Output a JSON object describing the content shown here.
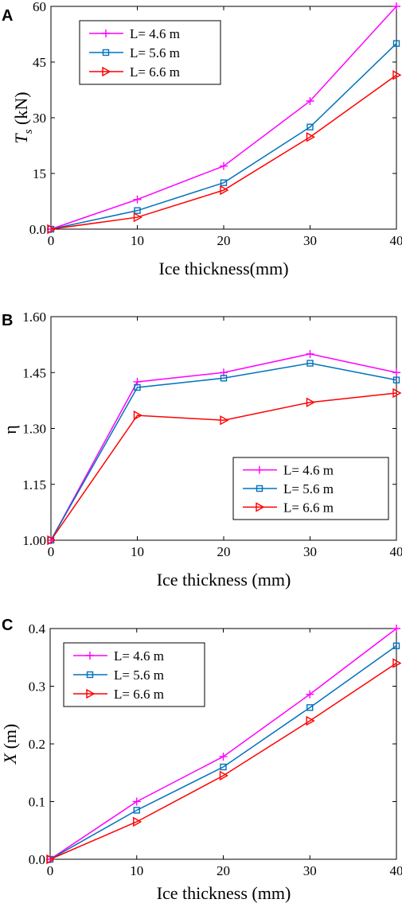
{
  "chart_data": [
    {
      "panel": "A",
      "type": "line",
      "title": "",
      "xlabel": "Ice thickness(mm)",
      "ylabel_main": "T",
      "ylabel_sub": "s",
      "ylabel_unit": " (kN)",
      "xlim": [
        0,
        40
      ],
      "ylim": [
        0,
        60
      ],
      "xticks": [
        "0",
        "10",
        "20",
        "30",
        "40"
      ],
      "yticks": [
        "0.0",
        "15",
        "30",
        "45",
        "60"
      ],
      "x": [
        0,
        10,
        20,
        30,
        40
      ],
      "legend_position": "top-left",
      "series": [
        {
          "name": "L= 4.6 m",
          "color": "#ff00ff",
          "marker": "plus",
          "values": [
            0,
            8,
            17,
            34.5,
            60
          ]
        },
        {
          "name": "L= 5.6 m",
          "color": "#0072bd",
          "marker": "square",
          "values": [
            0,
            5,
            12.5,
            27.5,
            50
          ]
        },
        {
          "name": "L= 6.6 m",
          "color": "#ff0000",
          "marker": "triangle-right",
          "values": [
            0,
            3.2,
            10.5,
            24.8,
            41.5
          ]
        }
      ]
    },
    {
      "panel": "B",
      "type": "line",
      "title": "",
      "xlabel": "Ice thickness (mm)",
      "ylabel_main": "η",
      "ylabel_sub": "",
      "ylabel_unit": "",
      "xlim": [
        0,
        40
      ],
      "ylim": [
        1.0,
        1.6
      ],
      "xticks": [
        "0",
        "10",
        "20",
        "30",
        "40"
      ],
      "yticks": [
        "1.00",
        "1.15",
        "1.30",
        "1.45",
        "1.60"
      ],
      "x": [
        0,
        10,
        20,
        30,
        40
      ],
      "legend_position": "bottom-right",
      "series": [
        {
          "name": "L= 4.6 m",
          "color": "#ff00ff",
          "marker": "plus",
          "values": [
            1.0,
            1.425,
            1.45,
            1.5,
            1.45
          ]
        },
        {
          "name": "L= 5.6 m",
          "color": "#0072bd",
          "marker": "square",
          "values": [
            1.0,
            1.41,
            1.435,
            1.475,
            1.43
          ]
        },
        {
          "name": "L= 6.6 m",
          "color": "#ff0000",
          "marker": "triangle-right",
          "values": [
            1.0,
            1.335,
            1.322,
            1.37,
            1.395
          ]
        }
      ]
    },
    {
      "panel": "C",
      "type": "line",
      "title": "",
      "xlabel": "Ice thickness (mm)",
      "ylabel_main": "X",
      "ylabel_sub": "",
      "ylabel_unit": " (m)",
      "xlim": [
        0,
        40
      ],
      "ylim": [
        0,
        0.4
      ],
      "xticks": [
        "0",
        "10",
        "20",
        "30",
        "40"
      ],
      "yticks": [
        "0.0",
        "0.1",
        "0.2",
        "0.3",
        "0.4"
      ],
      "x": [
        0,
        10,
        20,
        30,
        40
      ],
      "legend_position": "top-left",
      "series": [
        {
          "name": "L= 4.6 m",
          "color": "#ff00ff",
          "marker": "plus",
          "values": [
            0,
            0.1,
            0.178,
            0.286,
            0.4
          ]
        },
        {
          "name": "L= 5.6 m",
          "color": "#0072bd",
          "marker": "square",
          "values": [
            0,
            0.085,
            0.16,
            0.263,
            0.37
          ]
        },
        {
          "name": "L= 6.6 m",
          "color": "#ff0000",
          "marker": "triangle-right",
          "values": [
            0,
            0.065,
            0.145,
            0.24,
            0.34
          ]
        }
      ]
    }
  ]
}
